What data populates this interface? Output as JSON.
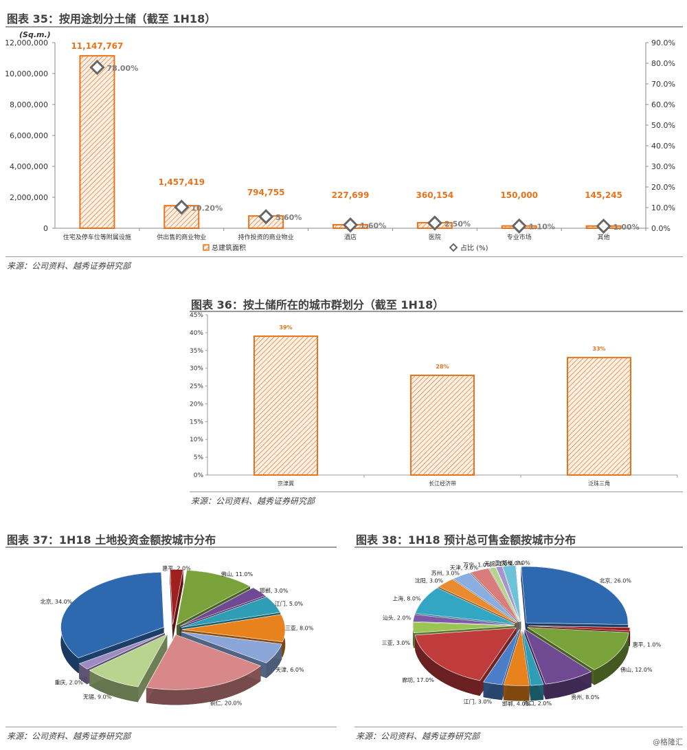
{
  "source_text": "来源：公司资料、越秀证券研究部",
  "watermark": "@格隆汇",
  "colors": {
    "orange": "#e8731c",
    "diamond": "#666666",
    "grid": "#d9d9d9"
  },
  "chart_data": [
    {
      "id": "fig35",
      "type": "bar",
      "title": "图表 35：按用途划分土储（截至 1H18）",
      "unit_label": "(Sq.m.)",
      "categories": [
        "住宅及停车位等附属设施",
        "供出售的商业物业",
        "持作投资的商业物业",
        "酒店",
        "医院",
        "专业市场",
        "其他"
      ],
      "series": [
        {
          "name": "总建筑面积",
          "axis": "left",
          "values": [
            11147767,
            1457419,
            794755,
            227699,
            360154,
            150000,
            145245
          ],
          "labels": [
            "11,147,767",
            "1,457,419",
            "794,755",
            "227,699",
            "360,154",
            "150,000",
            "145,245"
          ]
        },
        {
          "name": "占比 (%)",
          "axis": "right",
          "values": [
            78.0,
            10.2,
            5.6,
            1.6,
            2.5,
            1.1,
            1.0
          ],
          "labels": [
            "78.00%",
            "10.20%",
            "5.60%",
            "1.60%",
            "2.50%",
            "1.10%",
            "1.00%"
          ]
        }
      ],
      "ylim": [
        0,
        12000000
      ],
      "y_ticks": [
        "0",
        "2,000,000",
        "4,000,000",
        "6,000,000",
        "8,000,000",
        "10,000,000",
        "12,000,000"
      ],
      "y2lim": [
        0,
        90
      ],
      "y2_ticks": [
        "0.0%",
        "10.0%",
        "20.0%",
        "30.0%",
        "40.0%",
        "50.0%",
        "60.0%",
        "70.0%",
        "80.0%",
        "90.0%"
      ],
      "legend": [
        "总建筑面积",
        "占比 (%)"
      ],
      "legend_position": "bottom"
    },
    {
      "id": "fig36",
      "type": "bar",
      "title": "图表 36：按土储所在的城市群划分（截至 1H18）",
      "categories": [
        "京津冀",
        "长江经济带",
        "泛珠三角"
      ],
      "values": [
        39,
        28,
        33
      ],
      "labels": [
        "39%",
        "28%",
        "33%"
      ],
      "ylim": [
        0,
        45
      ],
      "y_ticks": [
        "0%",
        "5%",
        "10%",
        "15%",
        "20%",
        "25%",
        "30%",
        "35%",
        "40%",
        "45%"
      ]
    },
    {
      "id": "fig37",
      "type": "pie",
      "title": "图表 37：1H18 土地投资金额按城市分布",
      "slices": [
        {
          "label": "北京, 34.0%",
          "value": 34.0,
          "color": "#2e69b0"
        },
        {
          "label": "惠平, 2.0%",
          "value": 2.0,
          "color": "#a02020"
        },
        {
          "label": "佛山, 11.0%",
          "value": 11.0,
          "color": "#7aa23a"
        },
        {
          "label": "邯郸, 3.0%",
          "value": 3.0,
          "color": "#6f4a93"
        },
        {
          "label": "江门, 5.0%",
          "value": 5.0,
          "color": "#2e9db5"
        },
        {
          "label": "三亚, 8.0%",
          "value": 8.0,
          "color": "#e8821c"
        },
        {
          "label": "天津, 6.0%",
          "value": 6.0,
          "color": "#8aa6d8"
        },
        {
          "label": "铜仁, 20.0%",
          "value": 20.0,
          "color": "#d88888"
        },
        {
          "label": "无锡, 9.0%",
          "value": 9.0,
          "color": "#b8d48e"
        },
        {
          "label": "重庆, 2.0%",
          "value": 2.0,
          "color": "#9e8cc0"
        }
      ]
    },
    {
      "id": "fig38",
      "type": "pie",
      "title": "图表 38：1H18 预计总可售金额按城市分布",
      "slices": [
        {
          "label": "北京, 26.0%",
          "value": 26.0,
          "color": "#2e69b0"
        },
        {
          "label": "惠平, 1.0%",
          "value": 1.0,
          "color": "#a02020"
        },
        {
          "label": "佛山, 12.0%",
          "value": 12.0,
          "color": "#7aa23a"
        },
        {
          "label": "贵州, 8.0%",
          "value": 8.0,
          "color": "#6f4a93"
        },
        {
          "label": "海口, 2.0%",
          "value": 2.0,
          "color": "#2e9db5"
        },
        {
          "label": "邯郸, 4.0%",
          "value": 4.0,
          "color": "#e8821c"
        },
        {
          "label": "江门, 3.0%",
          "value": 3.0,
          "color": "#4a7ec8"
        },
        {
          "label": "廊坊, 17.0%",
          "value": 17.0,
          "color": "#c03b3b"
        },
        {
          "label": "三亚, 3.0%",
          "value": 3.0,
          "color": "#9ac454"
        },
        {
          "label": "汕头, 2.0%",
          "value": 2.0,
          "color": "#7c5aa8"
        },
        {
          "label": "上海, 8.0%",
          "value": 8.0,
          "color": "#33a6c4"
        },
        {
          "label": "沈阳, 3.0%",
          "value": 3.0,
          "color": "#ea8a2e"
        },
        {
          "label": "苏州, 3.0%",
          "value": 3.0,
          "color": "#8aaee0"
        },
        {
          "label": "天津, 3.0%",
          "value": 3.0,
          "color": "#d97c7c"
        },
        {
          "label": "万宁, 1.0%",
          "value": 1.0,
          "color": "#b5d48a"
        },
        {
          "label": "无锡, 1.0%",
          "value": 1.0,
          "color": "#a893cc"
        },
        {
          "label": "重庆, 2.0%",
          "value": 2.0,
          "color": "#6cc2d6"
        },
        {
          "label": "郑州, 0.0%",
          "value": 0.0,
          "color": "#f2a860"
        }
      ]
    }
  ]
}
